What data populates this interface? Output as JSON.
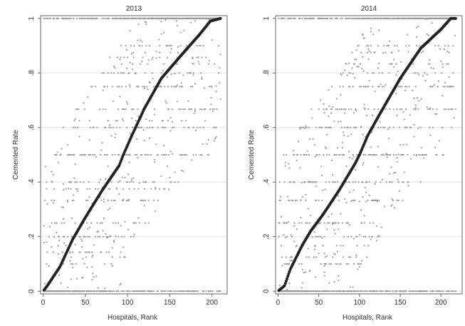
{
  "colors": {
    "background": "#ffffff",
    "grid": "#e6e6e6",
    "frame": "#666666",
    "rank_line": "#222222",
    "raw_rate": "#9a9a9a"
  },
  "chart_data": [
    {
      "type": "scatter",
      "title": "2013",
      "xlabel": "Hospitals, Rank",
      "ylabel": "Cemented Rate",
      "xlim": [
        -3,
        218
      ],
      "ylim": [
        -0.01,
        1.01
      ],
      "xticks": [
        0,
        50,
        100,
        150,
        200
      ],
      "xtick_labels": [
        "0",
        "50",
        "100",
        "150",
        "200"
      ],
      "yticks": [
        0,
        0.2,
        0.4,
        0.6,
        0.8,
        1
      ],
      "ytick_labels": [
        "0",
        ".2",
        ".4",
        ".6",
        ".8",
        "1"
      ],
      "grid": true,
      "n_hospitals": 210,
      "rank_curve": [
        [
          0,
          0
        ],
        [
          5,
          0.02
        ],
        [
          20,
          0.09
        ],
        [
          35,
          0.19
        ],
        [
          50,
          0.27
        ],
        [
          70,
          0.37
        ],
        [
          90,
          0.46
        ],
        [
          95,
          0.5
        ],
        [
          105,
          0.57
        ],
        [
          120,
          0.67
        ],
        [
          140,
          0.78
        ],
        [
          165,
          0.87
        ],
        [
          185,
          0.94
        ],
        [
          198,
          0.99
        ],
        [
          210,
          1.0
        ]
      ],
      "rate_rows": [
        0,
        0.1,
        0.125,
        0.143,
        0.2,
        0.25,
        0.333,
        0.375,
        0.4,
        0.5,
        0.6,
        0.625,
        0.667,
        0.75,
        0.8,
        0.833,
        0.857,
        0.875,
        0.9,
        1.0
      ]
    },
    {
      "type": "scatter",
      "title": "2014",
      "xlabel": "Hospitals, Rank",
      "ylabel": "Cemented Rate",
      "xlim": [
        -3,
        226
      ],
      "ylim": [
        -0.01,
        1.01
      ],
      "xticks": [
        0,
        50,
        100,
        150,
        200
      ],
      "xtick_labels": [
        "0",
        "50",
        "100",
        "150",
        "200"
      ],
      "yticks": [
        0,
        0.2,
        0.4,
        0.6,
        0.8,
        1
      ],
      "ytick_labels": [
        "0",
        ".2",
        ".4",
        ".6",
        ".8",
        "1"
      ],
      "grid": true,
      "n_hospitals": 218,
      "rank_curve": [
        [
          0,
          0
        ],
        [
          8,
          0.02
        ],
        [
          15,
          0.08
        ],
        [
          30,
          0.17
        ],
        [
          40,
          0.22
        ],
        [
          55,
          0.28
        ],
        [
          75,
          0.37
        ],
        [
          95,
          0.47
        ],
        [
          100,
          0.5
        ],
        [
          110,
          0.57
        ],
        [
          125,
          0.65
        ],
        [
          150,
          0.78
        ],
        [
          175,
          0.89
        ],
        [
          200,
          0.96
        ],
        [
          212,
          1.0
        ],
        [
          218,
          1.0
        ]
      ],
      "rate_rows": [
        0,
        0.1,
        0.125,
        0.167,
        0.2,
        0.25,
        0.333,
        0.4,
        0.5,
        0.6,
        0.667,
        0.75,
        0.8,
        0.833,
        0.875,
        0.9,
        1.0
      ]
    }
  ]
}
